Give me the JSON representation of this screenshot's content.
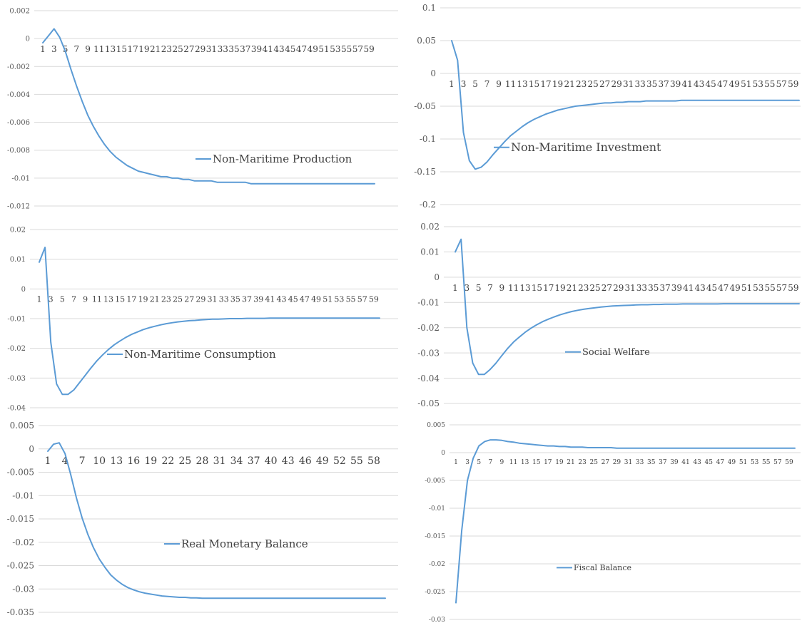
{
  "chart_data": [
    {
      "type": "line",
      "x": [
        1,
        2,
        3,
        4,
        5,
        6,
        7,
        8,
        9,
        10,
        11,
        12,
        13,
        14,
        15,
        16,
        17,
        18,
        19,
        20,
        21,
        22,
        23,
        24,
        25,
        26,
        27,
        28,
        29,
        30,
        31,
        32,
        33,
        34,
        35,
        36,
        37,
        38,
        39,
        40,
        41,
        42,
        43,
        44,
        45,
        46,
        47,
        48,
        49,
        50,
        51,
        52,
        53,
        54,
        55,
        56,
        57,
        58,
        59,
        60
      ],
      "x_tick_labels": [
        "1",
        "3",
        "5",
        "7",
        "9",
        "11",
        "13",
        "15",
        "17",
        "19",
        "21",
        "23",
        "25",
        "27",
        "29",
        "31",
        "33",
        "35",
        "37",
        "39",
        "41",
        "43",
        "45",
        "47",
        "49",
        "51",
        "53",
        "55",
        "57",
        "59"
      ],
      "series": [
        {
          "name": "Non-Maritime Production",
          "values": [
            -0.0003,
            0.0002,
            0.0007,
            0.0001,
            -0.0009,
            -0.0022,
            -0.0034,
            -0.0045,
            -0.0055,
            -0.0063,
            -0.007,
            -0.0076,
            -0.0081,
            -0.0085,
            -0.0088,
            -0.0091,
            -0.0093,
            -0.0095,
            -0.0096,
            -0.0097,
            -0.0098,
            -0.0099,
            -0.0099,
            -0.01,
            -0.01,
            -0.0101,
            -0.0101,
            -0.0102,
            -0.0102,
            -0.0102,
            -0.0102,
            -0.0103,
            -0.0103,
            -0.0103,
            -0.0103,
            -0.0103,
            -0.0103,
            -0.0104,
            -0.0104,
            -0.0104,
            -0.0104,
            -0.0104,
            -0.0104,
            -0.0104,
            -0.0104,
            -0.0104,
            -0.0104,
            -0.0104,
            -0.0104,
            -0.0104,
            -0.0104,
            -0.0104,
            -0.0104,
            -0.0104,
            -0.0104,
            -0.0104,
            -0.0104,
            -0.0104,
            -0.0104,
            -0.0104
          ]
        }
      ],
      "y_ticks": [
        "0.002",
        "0",
        "-0.002",
        "-0.004",
        "-0.006",
        "-0.008",
        "-0.01",
        "-0.012"
      ],
      "ylim": [
        -0.012,
        0.002
      ],
      "grid": true,
      "legend": "right"
    },
    {
      "type": "line",
      "x": [
        1,
        2,
        3,
        4,
        5,
        6,
        7,
        8,
        9,
        10,
        11,
        12,
        13,
        14,
        15,
        16,
        17,
        18,
        19,
        20,
        21,
        22,
        23,
        24,
        25,
        26,
        27,
        28,
        29,
        30,
        31,
        32,
        33,
        34,
        35,
        36,
        37,
        38,
        39,
        40,
        41,
        42,
        43,
        44,
        45,
        46,
        47,
        48,
        49,
        50,
        51,
        52,
        53,
        54,
        55,
        56,
        57,
        58,
        59,
        60
      ],
      "x_tick_labels": [
        "1",
        "3",
        "5",
        "7",
        "9",
        "11",
        "13",
        "15",
        "17",
        "19",
        "21",
        "23",
        "25",
        "27",
        "29",
        "31",
        "33",
        "35",
        "37",
        "39",
        "41",
        "43",
        "45",
        "47",
        "49",
        "51",
        "53",
        "55",
        "57",
        "59"
      ],
      "series": [
        {
          "name": "Non-Maritime Investment",
          "values": [
            0.05,
            0.02,
            -0.09,
            -0.133,
            -0.146,
            -0.143,
            -0.135,
            -0.124,
            -0.114,
            -0.104,
            -0.095,
            -0.088,
            -0.081,
            -0.075,
            -0.07,
            -0.066,
            -0.062,
            -0.059,
            -0.056,
            -0.054,
            -0.052,
            -0.05,
            -0.049,
            -0.048,
            -0.047,
            -0.046,
            -0.045,
            -0.045,
            -0.044,
            -0.044,
            -0.043,
            -0.043,
            -0.043,
            -0.042,
            -0.042,
            -0.042,
            -0.042,
            -0.042,
            -0.042,
            -0.041,
            -0.041,
            -0.041,
            -0.041,
            -0.041,
            -0.041,
            -0.041,
            -0.041,
            -0.041,
            -0.041,
            -0.041,
            -0.041,
            -0.041,
            -0.041,
            -0.041,
            -0.041,
            -0.041,
            -0.041,
            -0.041,
            -0.041,
            -0.041
          ]
        }
      ],
      "y_ticks": [
        "0.1",
        "0.05",
        "0",
        "-0.05",
        "-0.1",
        "-0.15",
        "-0.2"
      ],
      "ylim": [
        -0.2,
        0.1
      ],
      "grid": true,
      "legend": "right"
    },
    {
      "type": "line",
      "x": [
        1,
        2,
        3,
        4,
        5,
        6,
        7,
        8,
        9,
        10,
        11,
        12,
        13,
        14,
        15,
        16,
        17,
        18,
        19,
        20,
        21,
        22,
        23,
        24,
        25,
        26,
        27,
        28,
        29,
        30,
        31,
        32,
        33,
        34,
        35,
        36,
        37,
        38,
        39,
        40,
        41,
        42,
        43,
        44,
        45,
        46,
        47,
        48,
        49,
        50,
        51,
        52,
        53,
        54,
        55,
        56,
        57,
        58,
        59,
        60
      ],
      "x_tick_labels": [
        "1",
        "3",
        "5",
        "7",
        "9",
        "11",
        "13",
        "15",
        "17",
        "19",
        "21",
        "23",
        "25",
        "27",
        "29",
        "31",
        "33",
        "35",
        "37",
        "39",
        "41",
        "43",
        "45",
        "47",
        "49",
        "51",
        "53",
        "55",
        "57",
        "59"
      ],
      "series": [
        {
          "name": "Non-Maritime Consumption",
          "values": [
            0.009,
            0.014,
            -0.018,
            -0.032,
            -0.0355,
            -0.0355,
            -0.034,
            -0.0315,
            -0.029,
            -0.0265,
            -0.0242,
            -0.0222,
            -0.0204,
            -0.0188,
            -0.0175,
            -0.0163,
            -0.0153,
            -0.0145,
            -0.0137,
            -0.0131,
            -0.0126,
            -0.0121,
            -0.0117,
            -0.0114,
            -0.0111,
            -0.0109,
            -0.0107,
            -0.0106,
            -0.0104,
            -0.0103,
            -0.0102,
            -0.0102,
            -0.0101,
            -0.01,
            -0.01,
            -0.01,
            -0.0099,
            -0.0099,
            -0.0099,
            -0.0099,
            -0.0098,
            -0.0098,
            -0.0098,
            -0.0098,
            -0.0098,
            -0.0098,
            -0.0098,
            -0.0098,
            -0.0098,
            -0.0098,
            -0.0098,
            -0.0098,
            -0.0098,
            -0.0098,
            -0.0098,
            -0.0098,
            -0.0098,
            -0.0098,
            -0.0098,
            -0.0098
          ]
        }
      ],
      "y_ticks": [
        "0.02",
        "0.01",
        "0",
        "-0.01",
        "-0.02",
        "-0.03",
        "-0.04"
      ],
      "ylim": [
        -0.04,
        0.02
      ],
      "grid": true,
      "legend": "center"
    },
    {
      "type": "line",
      "x": [
        1,
        2,
        3,
        4,
        5,
        6,
        7,
        8,
        9,
        10,
        11,
        12,
        13,
        14,
        15,
        16,
        17,
        18,
        19,
        20,
        21,
        22,
        23,
        24,
        25,
        26,
        27,
        28,
        29,
        30,
        31,
        32,
        33,
        34,
        35,
        36,
        37,
        38,
        39,
        40,
        41,
        42,
        43,
        44,
        45,
        46,
        47,
        48,
        49,
        50,
        51,
        52,
        53,
        54,
        55,
        56,
        57,
        58,
        59,
        60
      ],
      "x_tick_labels": [
        "1",
        "3",
        "5",
        "7",
        "9",
        "11",
        "13",
        "15",
        "17",
        "19",
        "21",
        "23",
        "25",
        "27",
        "29",
        "31",
        "33",
        "35",
        "37",
        "39",
        "41",
        "43",
        "45",
        "47",
        "49",
        "51",
        "53",
        "55",
        "57",
        "59"
      ],
      "series": [
        {
          "name": "Social Welfare",
          "values": [
            0.01,
            0.015,
            -0.02,
            -0.034,
            -0.0385,
            -0.0385,
            -0.0365,
            -0.034,
            -0.031,
            -0.0282,
            -0.0257,
            -0.0237,
            -0.0218,
            -0.0202,
            -0.0188,
            -0.0176,
            -0.0166,
            -0.0157,
            -0.0149,
            -0.0142,
            -0.0136,
            -0.0131,
            -0.0127,
            -0.0124,
            -0.0121,
            -0.0118,
            -0.0116,
            -0.0114,
            -0.0113,
            -0.0112,
            -0.0111,
            -0.011,
            -0.0109,
            -0.0109,
            -0.0108,
            -0.0108,
            -0.0107,
            -0.0107,
            -0.0107,
            -0.0106,
            -0.0106,
            -0.0106,
            -0.0106,
            -0.0106,
            -0.0106,
            -0.0106,
            -0.0105,
            -0.0105,
            -0.0105,
            -0.0105,
            -0.0105,
            -0.0105,
            -0.0105,
            -0.0105,
            -0.0105,
            -0.0105,
            -0.0105,
            -0.0105,
            -0.0105,
            -0.0105
          ]
        }
      ],
      "y_ticks": [
        "0.02",
        "0.01",
        "0",
        "-0.01",
        "-0.02",
        "-0.03",
        "-0.04",
        "-0.05"
      ],
      "ylim": [
        -0.05,
        0.02
      ],
      "grid": true,
      "legend": "center"
    },
    {
      "type": "line",
      "x": [
        1,
        2,
        3,
        4,
        5,
        6,
        7,
        8,
        9,
        10,
        11,
        12,
        13,
        14,
        15,
        16,
        17,
        18,
        19,
        20,
        21,
        22,
        23,
        24,
        25,
        26,
        27,
        28,
        29,
        30,
        31,
        32,
        33,
        34,
        35,
        36,
        37,
        38,
        39,
        40,
        41,
        42,
        43,
        44,
        45,
        46,
        47,
        48,
        49,
        50,
        51,
        52,
        53,
        54,
        55,
        56,
        57,
        58,
        59,
        60
      ],
      "x_tick_labels": [
        "1",
        "4",
        "7",
        "10",
        "13",
        "16",
        "19",
        "22",
        "25",
        "28",
        "31",
        "34",
        "37",
        "40",
        "43",
        "46",
        "49",
        "52",
        "55",
        "58"
      ],
      "series": [
        {
          "name": "Real Monetary Balance",
          "values": [
            -0.0005,
            0.001,
            0.0013,
            -0.001,
            -0.0055,
            -0.0105,
            -0.0148,
            -0.0183,
            -0.0212,
            -0.0236,
            -0.0254,
            -0.027,
            -0.0281,
            -0.029,
            -0.0297,
            -0.0302,
            -0.0306,
            -0.0309,
            -0.0311,
            -0.0313,
            -0.0315,
            -0.0316,
            -0.0317,
            -0.0318,
            -0.0318,
            -0.0319,
            -0.0319,
            -0.032,
            -0.032,
            -0.032,
            -0.032,
            -0.032,
            -0.032,
            -0.032,
            -0.032,
            -0.032,
            -0.032,
            -0.032,
            -0.032,
            -0.032,
            -0.032,
            -0.032,
            -0.032,
            -0.032,
            -0.032,
            -0.032,
            -0.032,
            -0.032,
            -0.032,
            -0.032,
            -0.032,
            -0.032,
            -0.032,
            -0.032,
            -0.032,
            -0.032,
            -0.032,
            -0.032,
            -0.032,
            -0.032
          ]
        }
      ],
      "y_ticks": [
        "0.005",
        "0",
        "-0.005",
        "-0.01",
        "-0.015",
        "-0.02",
        "-0.025",
        "-0.03",
        "-0.035"
      ],
      "ylim": [
        -0.035,
        0.005
      ],
      "grid": true,
      "legend": "right"
    },
    {
      "type": "line",
      "x": [
        1,
        2,
        3,
        4,
        5,
        6,
        7,
        8,
        9,
        10,
        11,
        12,
        13,
        14,
        15,
        16,
        17,
        18,
        19,
        20,
        21,
        22,
        23,
        24,
        25,
        26,
        27,
        28,
        29,
        30,
        31,
        32,
        33,
        34,
        35,
        36,
        37,
        38,
        39,
        40,
        41,
        42,
        43,
        44,
        45,
        46,
        47,
        48,
        49,
        50,
        51,
        52,
        53,
        54,
        55,
        56,
        57,
        58,
        59,
        60
      ],
      "x_tick_labels": [
        "1",
        "3",
        "5",
        "7",
        "9",
        "11",
        "13",
        "15",
        "17",
        "19",
        "21",
        "23",
        "25",
        "27",
        "29",
        "31",
        "33",
        "35",
        "37",
        "39",
        "41",
        "43",
        "45",
        "47",
        "49",
        "51",
        "53",
        "55",
        "57",
        "59"
      ],
      "series": [
        {
          "name": "Fiscal Balance",
          "values": [
            -0.027,
            -0.014,
            -0.005,
            -0.001,
            0.0012,
            0.002,
            0.0023,
            0.0023,
            0.0022,
            0.002,
            0.0019,
            0.0017,
            0.0016,
            0.0015,
            0.0014,
            0.0013,
            0.0012,
            0.0012,
            0.0011,
            0.0011,
            0.001,
            0.001,
            0.001,
            0.0009,
            0.0009,
            0.0009,
            0.0009,
            0.0009,
            0.0008,
            0.0008,
            0.0008,
            0.0008,
            0.0008,
            0.0008,
            0.0008,
            0.0008,
            0.0008,
            0.0008,
            0.0008,
            0.0008,
            0.0008,
            0.0008,
            0.0008,
            0.0008,
            0.0008,
            0.0008,
            0.0008,
            0.0008,
            0.0008,
            0.0008,
            0.0008,
            0.0008,
            0.0008,
            0.0008,
            0.0008,
            0.0008,
            0.0008,
            0.0008,
            0.0008,
            0.0008
          ]
        }
      ],
      "y_ticks": [
        "0.005",
        "0",
        "-0.005",
        "-0.01",
        "-0.015",
        "-0.02",
        "-0.025",
        "-0.03"
      ],
      "ylim": [
        -0.03,
        0.005
      ],
      "grid": true,
      "legend": "center"
    }
  ]
}
